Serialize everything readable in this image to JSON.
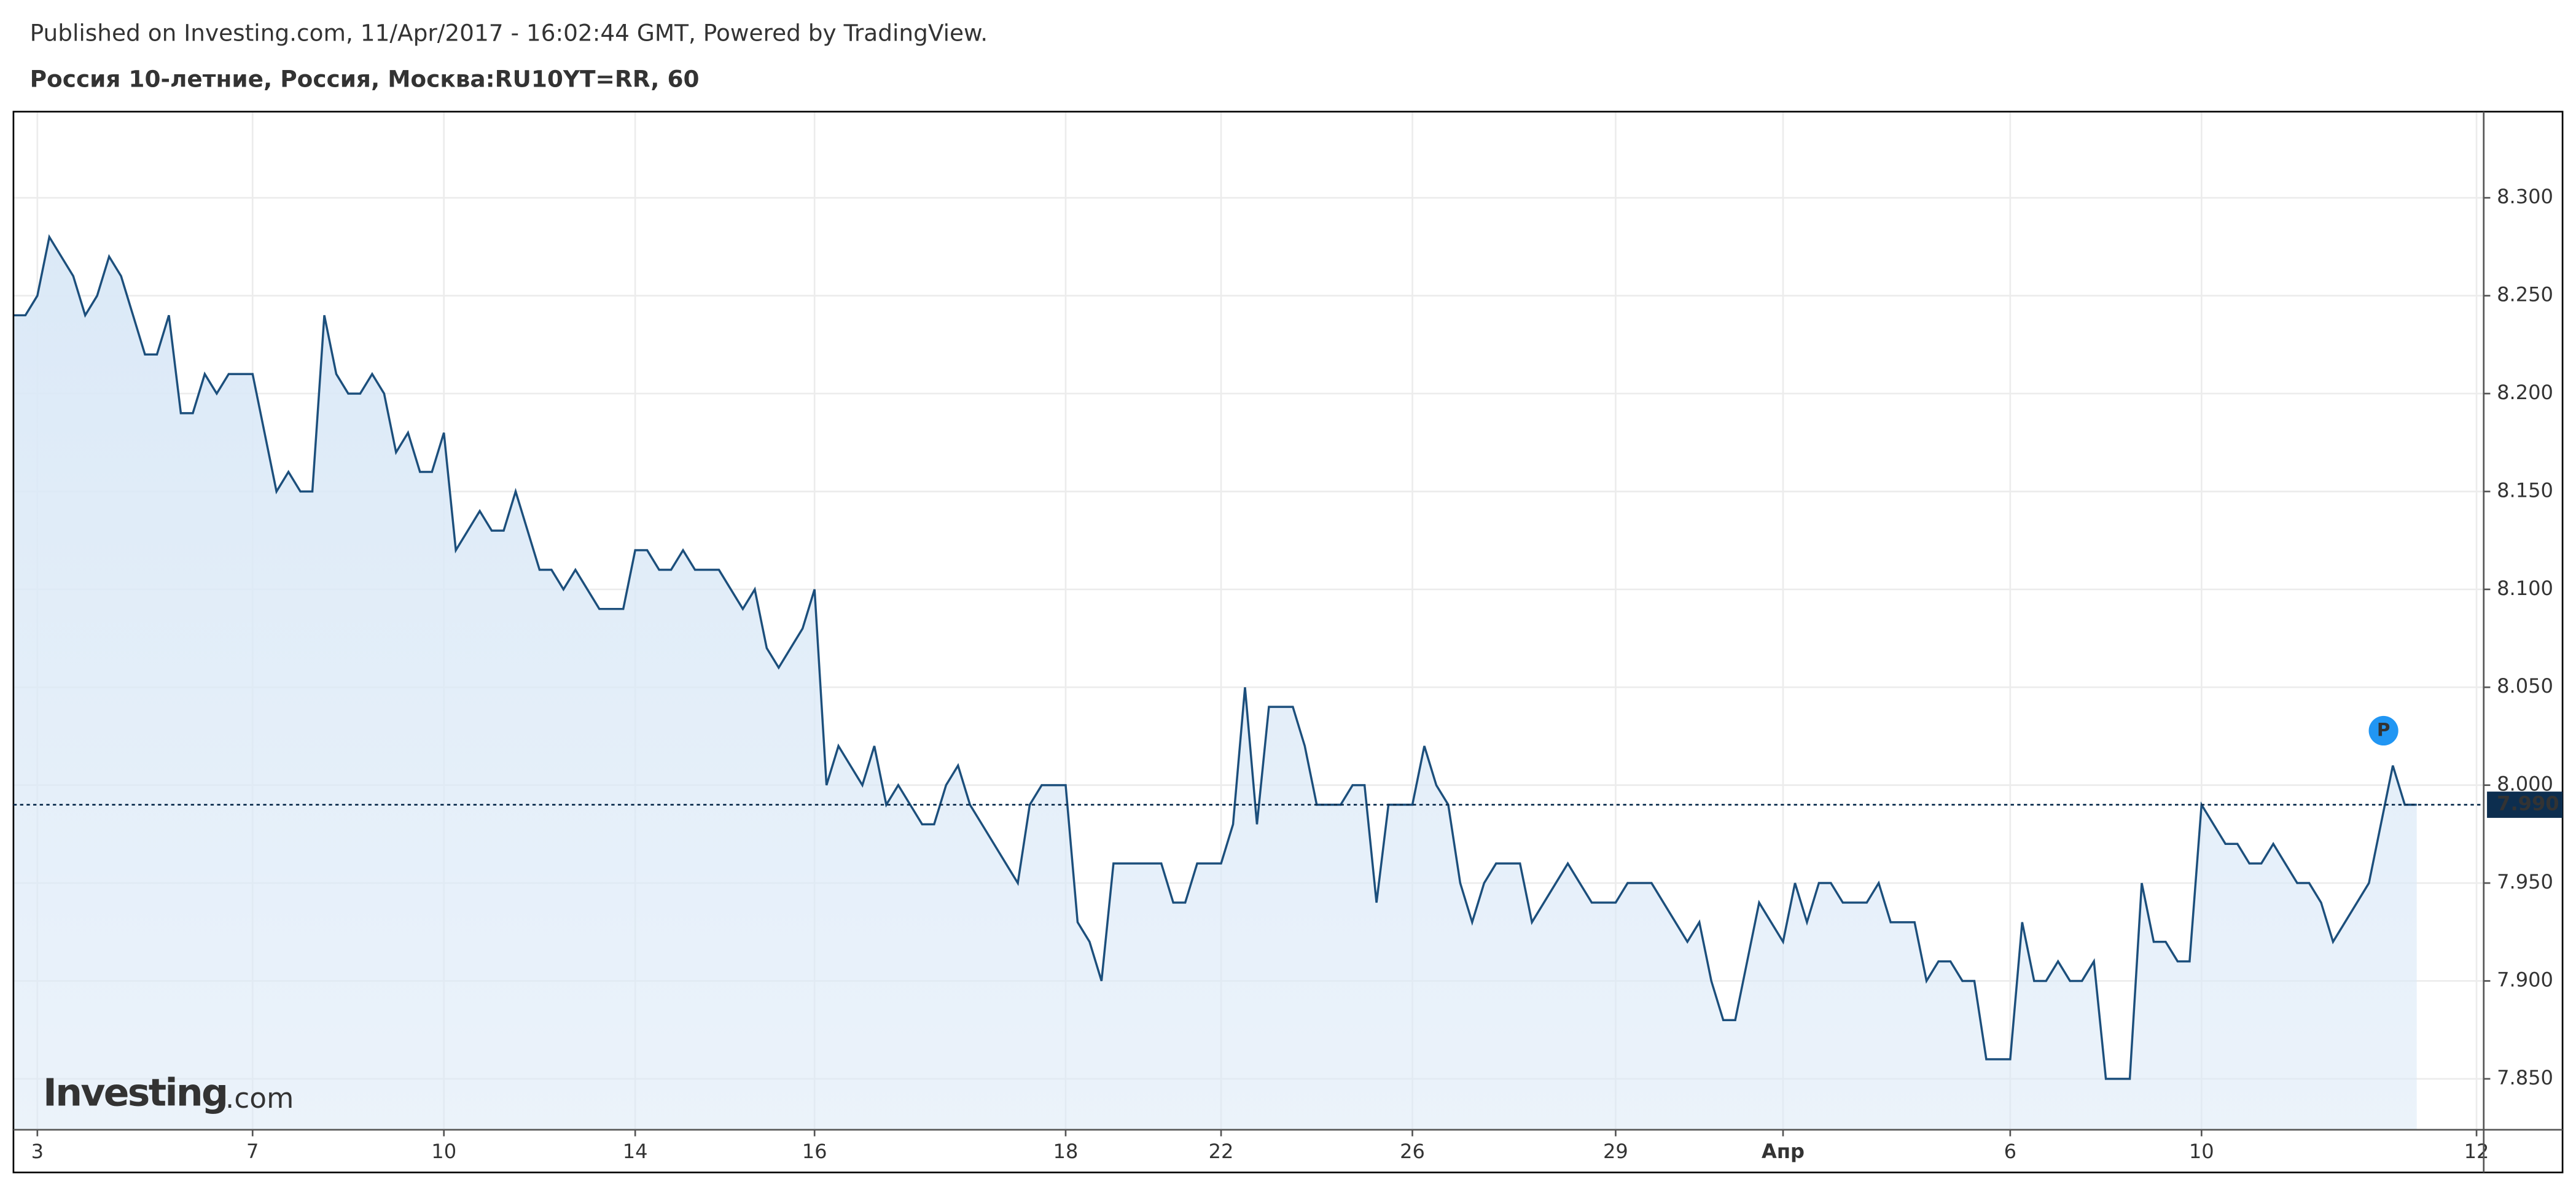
{
  "header": "Published on Investing.com, 11/Apr/2017 - 16:02:44 GMT, Powered by TradingView.",
  "chart_data": {
    "type": "area-line",
    "title": "Россия 10-летние, Россия, Москва:RU10YT=RR, 60",
    "color": "#1c4f7c",
    "fill_color": "#dbe9f7",
    "values": [
      8.24,
      8.24,
      8.25,
      8.28,
      8.27,
      8.26,
      8.24,
      8.25,
      8.27,
      8.26,
      8.24,
      8.22,
      8.22,
      8.24,
      8.19,
      8.19,
      8.21,
      8.2,
      8.21,
      8.21,
      8.21,
      8.18,
      8.15,
      8.16,
      8.15,
      8.15,
      8.24,
      8.21,
      8.2,
      8.2,
      8.21,
      8.2,
      8.17,
      8.18,
      8.16,
      8.16,
      8.18,
      8.12,
      8.13,
      8.14,
      8.13,
      8.13,
      8.15,
      8.13,
      8.11,
      8.11,
      8.1,
      8.11,
      8.1,
      8.09,
      8.09,
      8.09,
      8.12,
      8.12,
      8.11,
      8.11,
      8.12,
      8.11,
      8.11,
      8.11,
      8.1,
      8.09,
      8.1,
      8.07,
      8.06,
      8.07,
      8.08,
      8.1,
      8.0,
      8.02,
      8.01,
      8.0,
      8.02,
      7.99,
      8.0,
      7.99,
      7.98,
      7.98,
      8.0,
      8.01,
      7.99,
      7.98,
      7.97,
      7.96,
      7.95,
      7.99,
      8.0,
      8.0,
      8.0,
      7.93,
      7.92,
      7.9,
      7.96,
      7.96,
      7.96,
      7.96,
      7.96,
      7.94,
      7.94,
      7.96,
      7.96,
      7.96,
      7.98,
      8.05,
      7.98,
      8.04,
      8.04,
      8.04,
      8.02,
      7.99,
      7.99,
      7.99,
      8.0,
      8.0,
      7.94,
      7.99,
      7.99,
      7.99,
      8.02,
      8.0,
      7.99,
      7.95,
      7.93,
      7.95,
      7.96,
      7.96,
      7.96,
      7.93,
      7.94,
      7.95,
      7.96,
      7.95,
      7.94,
      7.94,
      7.94,
      7.95,
      7.95,
      7.95,
      7.94,
      7.93,
      7.92,
      7.93,
      7.9,
      7.88,
      7.88,
      7.91,
      7.94,
      7.93,
      7.92,
      7.95,
      7.93,
      7.95,
      7.95,
      7.94,
      7.94,
      7.94,
      7.95,
      7.93,
      7.93,
      7.93,
      7.9,
      7.91,
      7.91,
      7.9,
      7.9,
      7.86,
      7.86,
      7.86,
      7.93,
      7.9,
      7.9,
      7.91,
      7.9,
      7.9,
      7.91,
      7.85,
      7.85,
      7.85,
      7.95,
      7.92,
      7.92,
      7.91,
      7.91,
      7.99,
      7.98,
      7.97,
      7.97,
      7.96,
      7.96,
      7.97,
      7.96,
      7.95,
      7.95,
      7.94,
      7.92,
      7.93,
      7.94,
      7.95,
      7.98,
      8.01,
      7.99,
      7.99
    ],
    "xlim": [
      0,
      206.6
    ],
    "xticks": [
      {
        "value": 2,
        "label": "3"
      },
      {
        "value": 20,
        "label": "7"
      },
      {
        "value": 36,
        "label": "10"
      },
      {
        "value": 52,
        "label": "14"
      },
      {
        "value": 67,
        "label": "16"
      },
      {
        "value": 88,
        "label": "18"
      },
      {
        "value": 101,
        "label": "22"
      },
      {
        "value": 117,
        "label": "26"
      },
      {
        "value": 134,
        "label": "29"
      },
      {
        "value": 148,
        "label": "Апр"
      },
      {
        "value": 167,
        "label": "6"
      },
      {
        "value": 183,
        "label": "10"
      },
      {
        "value": 206,
        "label": "12"
      }
    ],
    "ylim": [
      7.824,
      8.344
    ],
    "yticks": [
      {
        "value": 7.85,
        "label": "7.850"
      },
      {
        "value": 7.9,
        "label": "7.900"
      },
      {
        "value": 7.95,
        "label": "7.950"
      },
      {
        "value": 8.0,
        "label": "8.000"
      },
      {
        "value": 8.05,
        "label": "8.050"
      },
      {
        "value": 8.1,
        "label": "8.100"
      },
      {
        "value": 8.15,
        "label": "8.150"
      },
      {
        "value": 8.2,
        "label": "8.200"
      },
      {
        "value": 8.25,
        "label": "8.250"
      },
      {
        "value": 8.3,
        "label": "8.300"
      }
    ],
    "grid": true,
    "last_value": {
      "value": 7.99,
      "label": "7.990"
    },
    "annotation": "P",
    "watermark": "Investing",
    "watermark_suffix": ".com"
  }
}
